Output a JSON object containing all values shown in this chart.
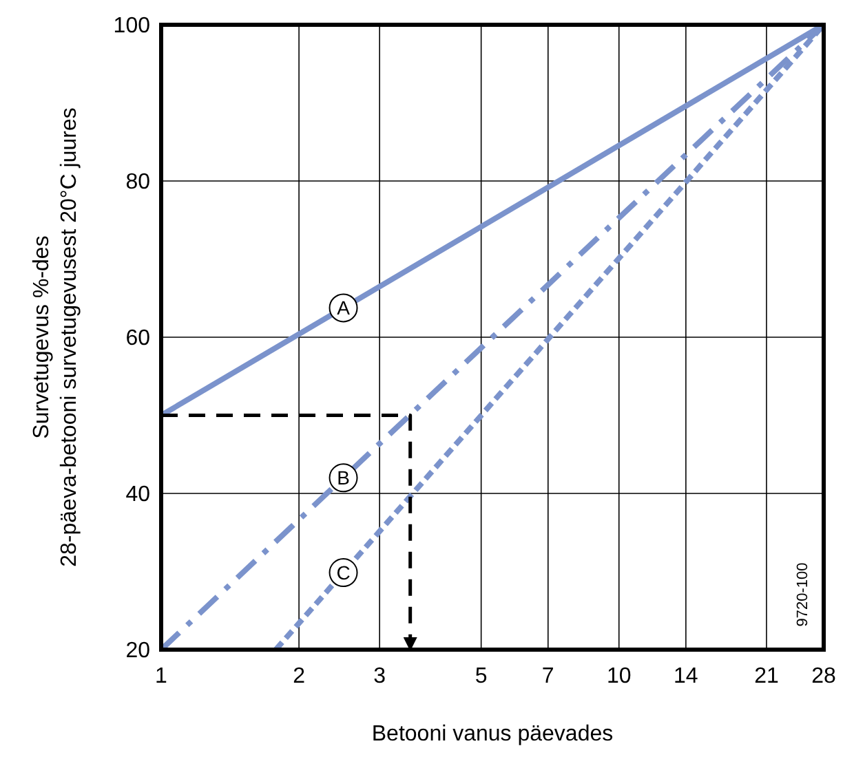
{
  "chart_data": {
    "type": "line",
    "xlabel": "Betooni vanus päevades",
    "ylabel": "Survetugevus %-des\n28-päeva-betooni survetugevusest 20°C juures",
    "log": "x",
    "xlim": [
      1,
      28
    ],
    "xticks": [
      1,
      2,
      3,
      5,
      7,
      10,
      14,
      21,
      28
    ],
    "ylim": [
      20,
      100
    ],
    "yticks": [
      20,
      40,
      60,
      80,
      100
    ],
    "grid": true,
    "marker": "none",
    "series": [
      {
        "name": "A",
        "x": [
          1,
          28
        ],
        "values": [
          50,
          100
        ],
        "color": "#7b93cc",
        "line_style": "solid"
      },
      {
        "name": "B",
        "x": [
          1,
          28
        ],
        "values": [
          20,
          100
        ],
        "color": "#7b93cc",
        "line_style": "dashdot"
      },
      {
        "name": "C",
        "x": [
          1.78,
          28
        ],
        "values": [
          20,
          100
        ],
        "color": "#7b93cc",
        "line_style": "dotted"
      },
      {
        "x": [
          1,
          3.5,
          3.5
        ],
        "values": [
          50,
          50,
          20
        ],
        "color": "#000000",
        "line_style": "dashed"
      }
    ],
    "annotations": [
      "9720-100"
    ]
  }
}
